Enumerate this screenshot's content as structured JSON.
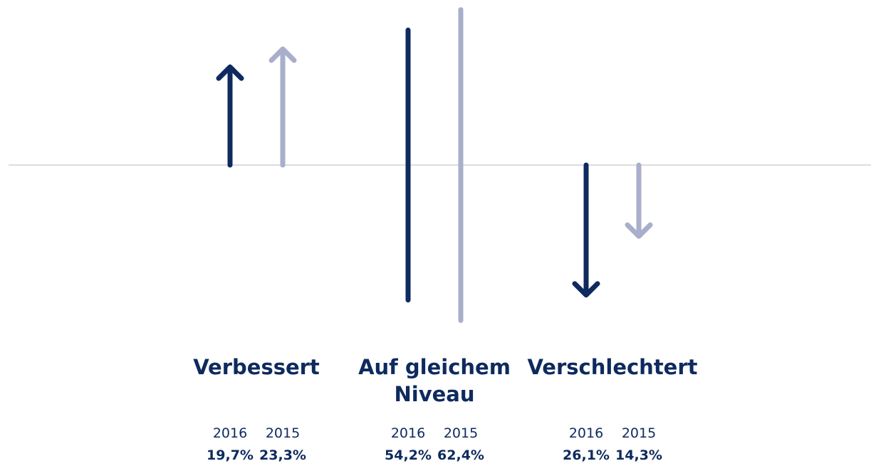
{
  "chart_data": {
    "type": "arrow",
    "categories": [
      "Verbessert",
      "Auf gleichem Niveau",
      "Verschlechtert"
    ],
    "directions": [
      "up",
      "level",
      "down"
    ],
    "series": [
      {
        "name": "2016",
        "color": "#0e2a5e",
        "values": [
          19.7,
          54.2,
          26.1
        ],
        "value_labels": [
          "19,7%",
          "54,2%",
          "26,1%"
        ]
      },
      {
        "name": "2015",
        "color": "#a9aecb",
        "values": [
          23.3,
          62.4,
          14.3
        ],
        "value_labels": [
          "23,3%",
          "62,4%",
          "14,3%"
        ]
      }
    ]
  }
}
